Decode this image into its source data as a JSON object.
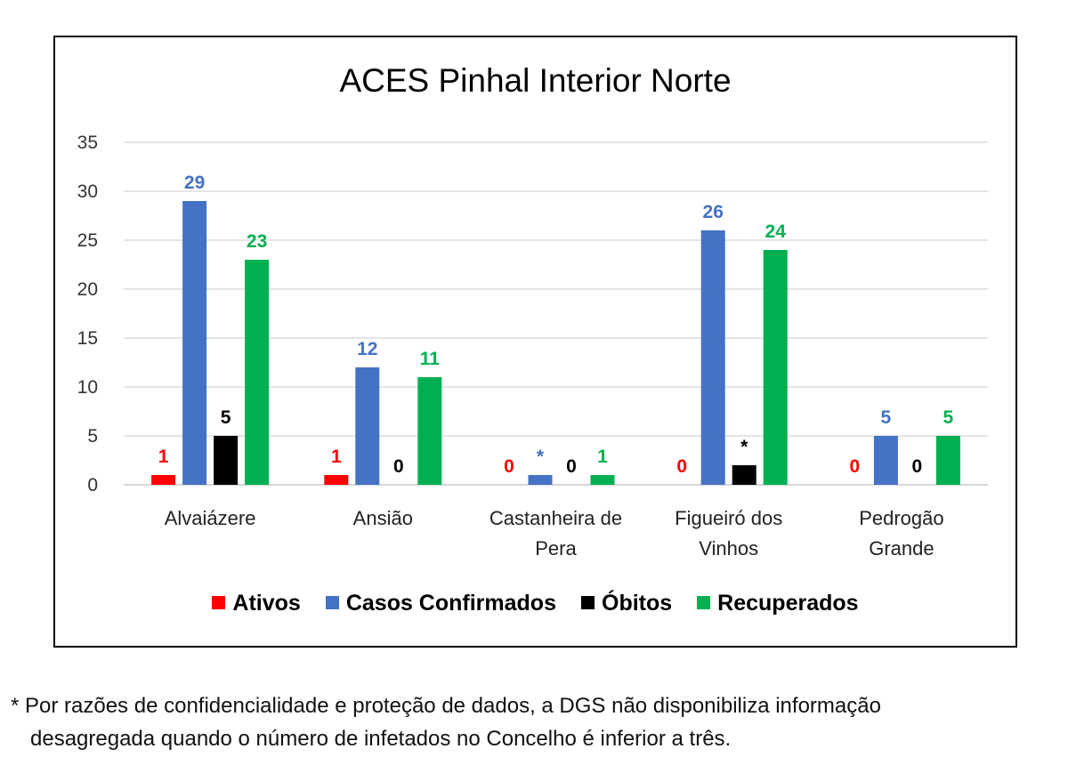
{
  "chart_data": {
    "type": "bar",
    "title": "ACES Pinhal Interior Norte",
    "categories": [
      [
        "Alvaiázere"
      ],
      [
        "Ansião"
      ],
      [
        "Castanheira de",
        "Pera"
      ],
      [
        "Figueiró dos",
        "Vinhos"
      ],
      [
        "Pedrogão",
        "Grande"
      ]
    ],
    "ylim": [
      0,
      35
    ],
    "yticks": [
      0,
      5,
      10,
      15,
      20,
      25,
      30,
      35
    ],
    "grid": true,
    "legend_position": "bottom",
    "series": [
      {
        "name": "Ativos",
        "color": "#ff0000",
        "values": [
          1,
          1,
          0,
          0,
          0
        ],
        "labels": [
          "1",
          "1",
          "0",
          "0",
          "0"
        ]
      },
      {
        "name": "Casos Confirmados",
        "color": "#4472c4",
        "values": [
          29,
          12,
          1,
          26,
          5
        ],
        "labels": [
          "29",
          "12",
          "*",
          "26",
          "5"
        ]
      },
      {
        "name": "Óbitos",
        "color": "#000000",
        "values": [
          5,
          0,
          0,
          2,
          0
        ],
        "labels": [
          "5",
          "0",
          "0",
          "*",
          "0"
        ]
      },
      {
        "name": "Recuperados",
        "color": "#00b050",
        "values": [
          23,
          11,
          1,
          24,
          5
        ],
        "labels": [
          "23",
          "11",
          "1",
          "24",
          "5"
        ]
      }
    ]
  },
  "footnote": {
    "line1": "* Por razões de confidencialidade e proteção de dados, a DGS não disponibiliza informação",
    "line2": "desagregada quando o número de infetados no Concelho é inferior a três."
  }
}
